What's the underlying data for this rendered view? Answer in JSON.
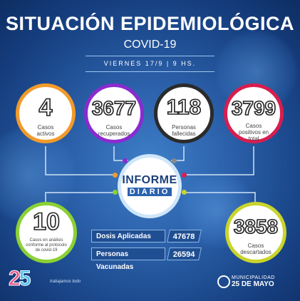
{
  "header": {
    "title": "SITUACIÓN EPIDEMIOLÓGICA",
    "subtitle": "COVID-19",
    "date": "VIERNES 17/9 | 9 HS."
  },
  "stats": {
    "activos": {
      "value": "4",
      "label": "Casos activos",
      "color": "#f29a2a"
    },
    "recuperados": {
      "value": "3677",
      "label": "Casos recuperados",
      "color": "#8a2bcf"
    },
    "fallecidas": {
      "value": "118",
      "label": "Personas fallecidas",
      "color": "#2b2b2b"
    },
    "positivos": {
      "value": "3799",
      "label": "Casos positivos en total",
      "color": "#d81d4f"
    },
    "analisis": {
      "value": "10",
      "label": "Casos en análisis conforme al protocolo de covid-19",
      "color": "#8bd135"
    },
    "descartados": {
      "value": "3858",
      "label": "Casos descartados",
      "color": "#c9d42c"
    }
  },
  "center": {
    "line1": "INFORME",
    "line2": "DIARIO"
  },
  "vaccines": {
    "dosis_label": "Dosis Aplicadas",
    "dosis_value": "47678",
    "personas_label": "Personas Vacunadas",
    "personas_value": "26594"
  },
  "footer": {
    "logo_text_a": "2",
    "logo_text_b": "5",
    "note": "trabajamos todo",
    "muni_line1": "MUNICIPALIDAD",
    "muni_line2": "25 DE MAYO"
  }
}
